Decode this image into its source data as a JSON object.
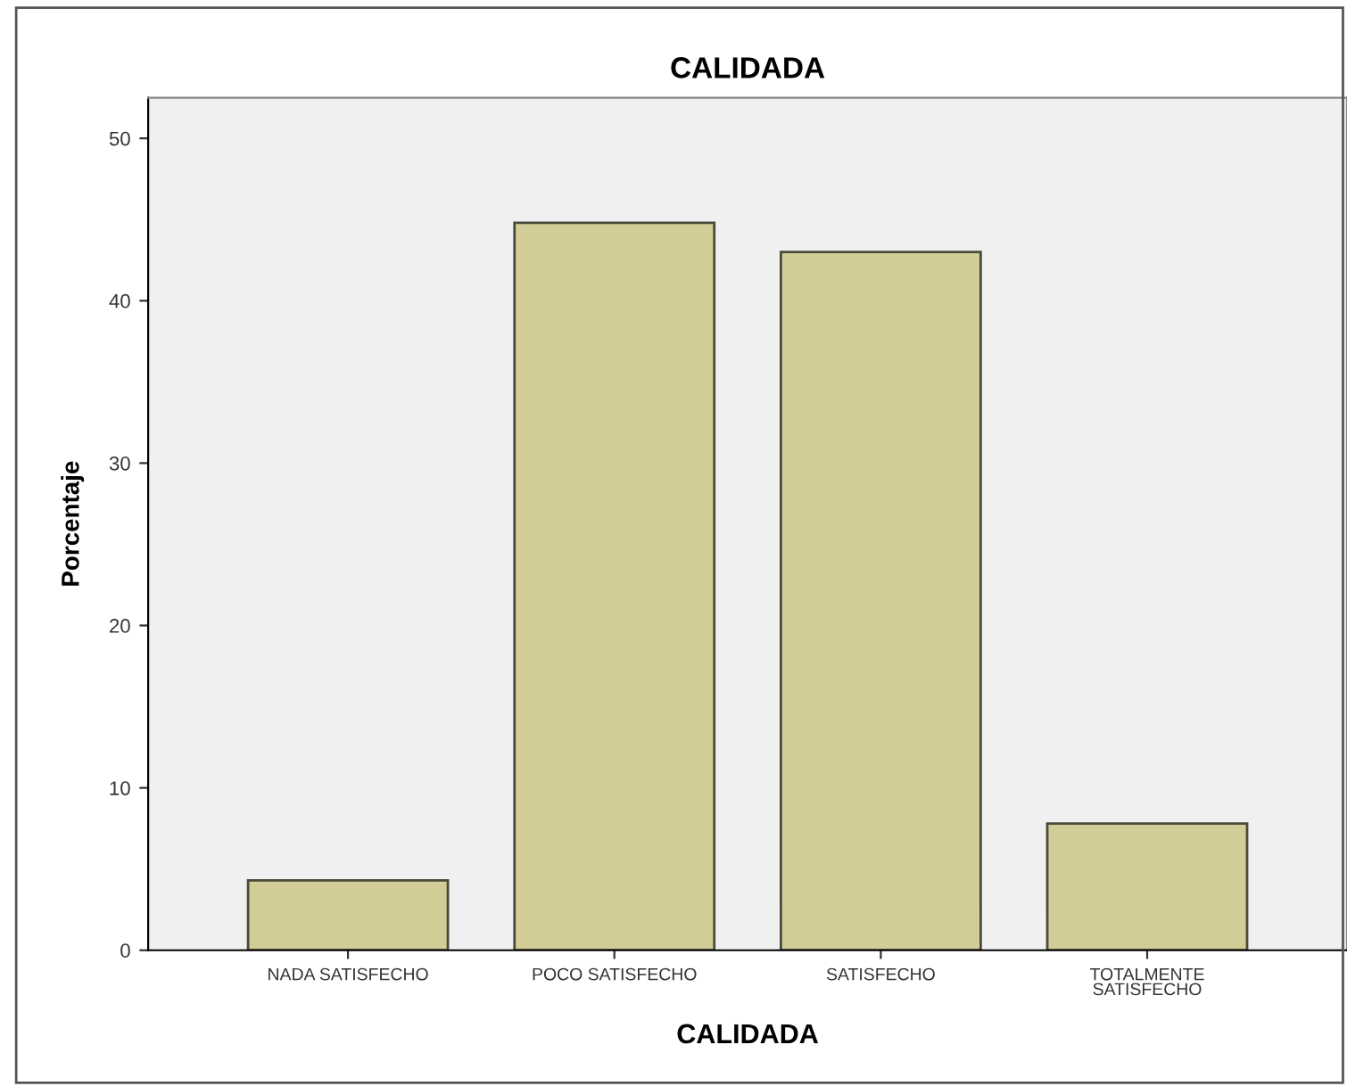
{
  "chart_data": {
    "type": "bar",
    "title": "CALIDADA",
    "xlabel": "CALIDADA",
    "ylabel": "Porcentaje",
    "categories": [
      "NADA SATISFECHO",
      "POCO SATISFECHO",
      "SATISFECHO",
      "TOTALMENTE\nSATISFECHO"
    ],
    "values": [
      4.3,
      44.8,
      43.0,
      7.8
    ],
    "color": "#d2cc96",
    "ylim": [
      0,
      52.5
    ],
    "yticks": [
      0,
      10,
      20,
      30,
      40,
      50
    ],
    "grid": false,
    "legend": false
  }
}
